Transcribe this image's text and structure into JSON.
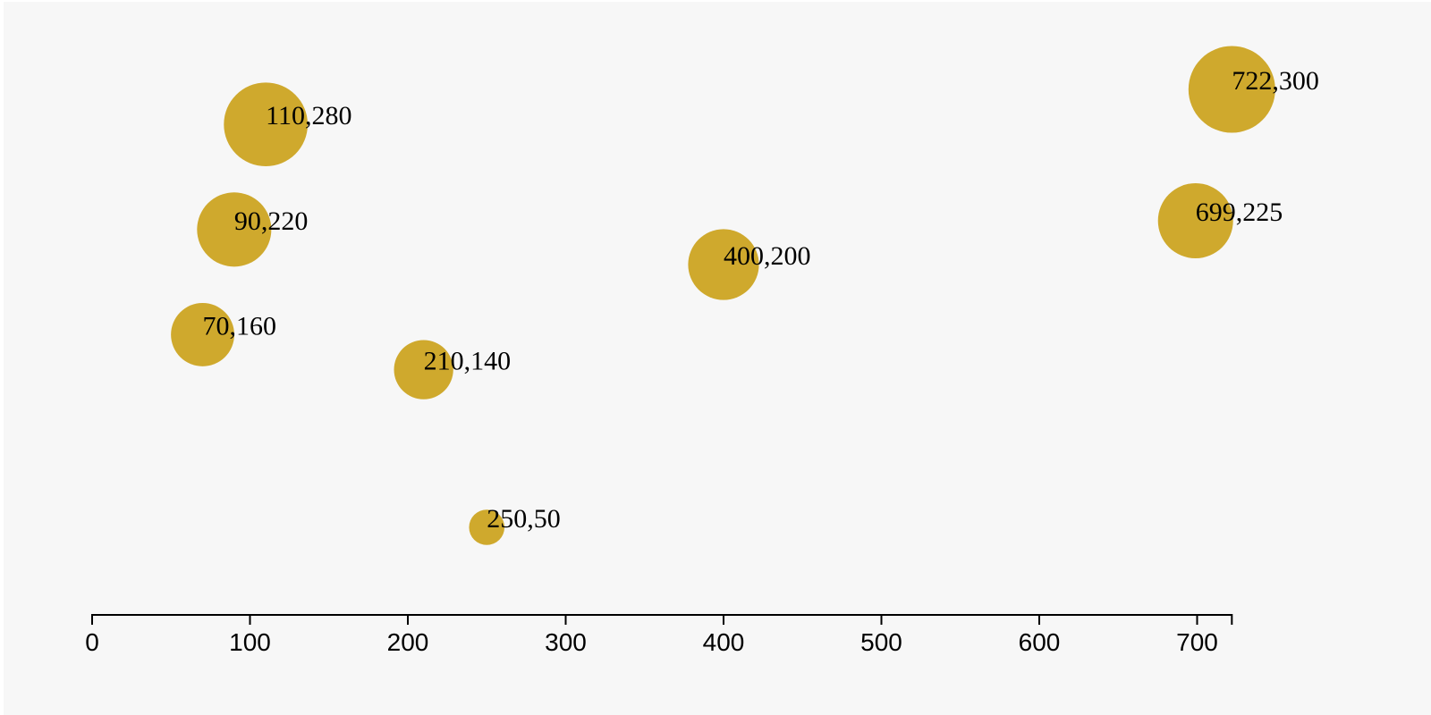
{
  "chart_data": {
    "type": "scatter",
    "title": "",
    "xlabel": "",
    "ylabel": "",
    "xlim": [
      0,
      722
    ],
    "ylim": [
      0,
      350
    ],
    "x_ticks": [
      0,
      100,
      200,
      300,
      400,
      500,
      600,
      700
    ],
    "grid": false,
    "points": [
      {
        "x": 110,
        "y": 280,
        "label": "110,280"
      },
      {
        "x": 90,
        "y": 220,
        "label": "90,220"
      },
      {
        "x": 70,
        "y": 160,
        "label": "70,160"
      },
      {
        "x": 210,
        "y": 140,
        "label": "210,140"
      },
      {
        "x": 250,
        "y": 50,
        "label": "250,50"
      },
      {
        "x": 400,
        "y": 200,
        "label": "400,200"
      },
      {
        "x": 699,
        "y": 225,
        "label": "699,225"
      },
      {
        "x": 722,
        "y": 300,
        "label": "722,300"
      }
    ],
    "marker_color": "#CFA92D",
    "background_color": "#F7F7F7",
    "axis_color": "#000000"
  }
}
